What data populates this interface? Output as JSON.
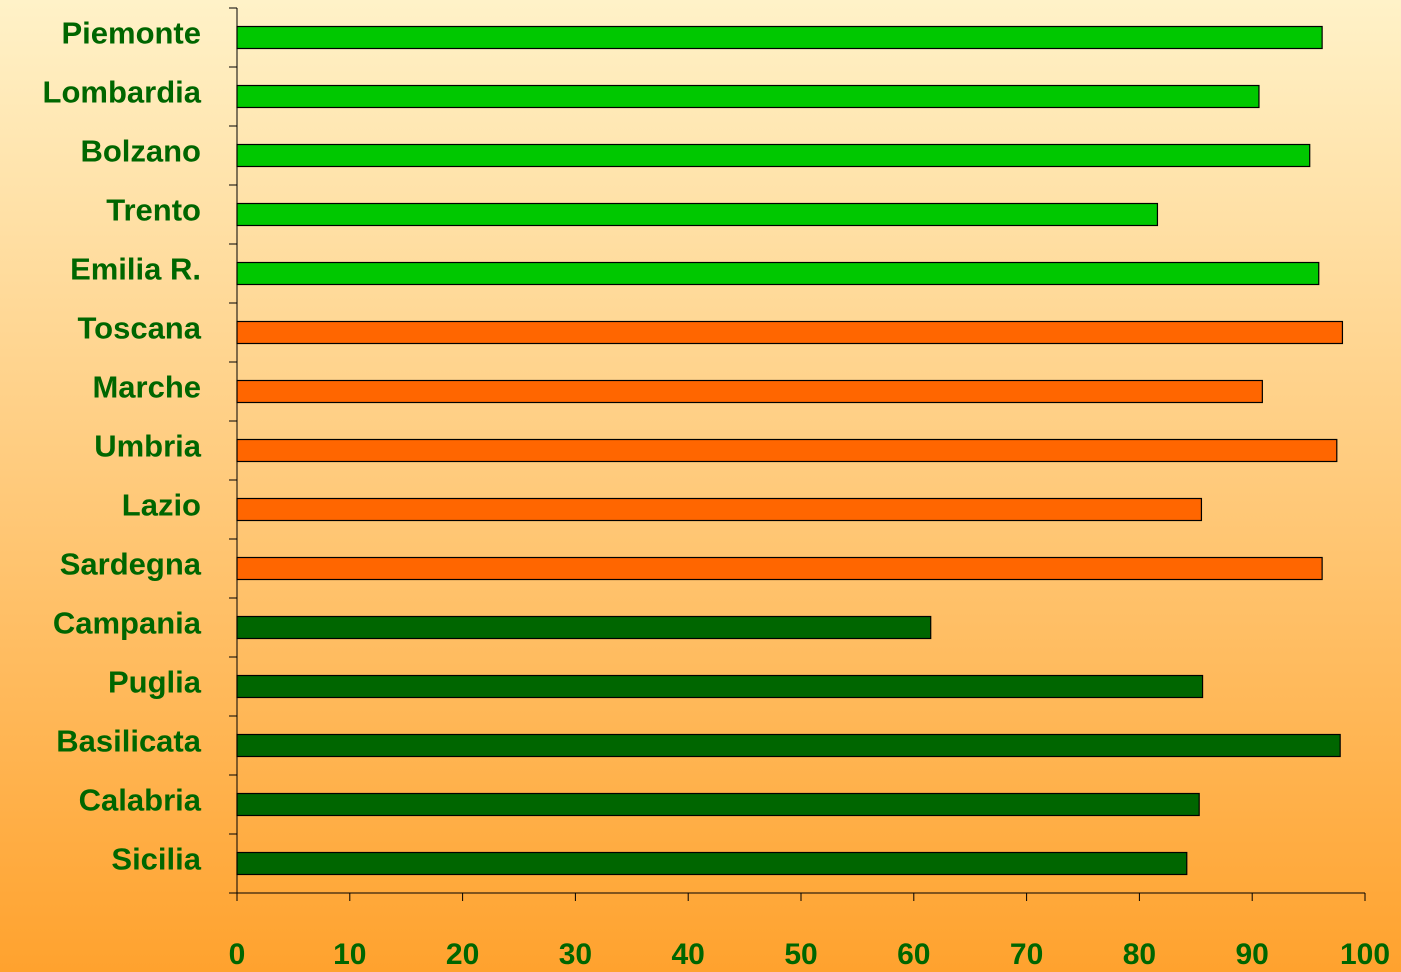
{
  "chart_data": {
    "type": "bar",
    "orientation": "horizontal",
    "categories": [
      "Piemonte",
      "Lombardia",
      "Bolzano",
      "Trento",
      "Emilia R.",
      "Toscana",
      "Marche",
      "Umbria",
      "Lazio",
      "Sardegna",
      "Campania",
      "Puglia",
      "Basilicata",
      "Calabria",
      "Sicilia"
    ],
    "values": [
      96.2,
      90.6,
      95.1,
      81.6,
      95.9,
      98.0,
      90.9,
      97.5,
      85.5,
      96.2,
      61.5,
      85.6,
      97.8,
      85.3,
      84.2
    ],
    "colors": [
      "#00c800",
      "#00c800",
      "#00c800",
      "#00c800",
      "#00c800",
      "#ff6600",
      "#ff6600",
      "#ff6600",
      "#ff6600",
      "#ff6600",
      "#006600",
      "#006600",
      "#006600",
      "#006600",
      "#006600"
    ],
    "xlim": [
      0,
      100
    ],
    "xticks": [
      0,
      10,
      20,
      30,
      40,
      50,
      60,
      70,
      80,
      90,
      100
    ],
    "grid": false
  }
}
